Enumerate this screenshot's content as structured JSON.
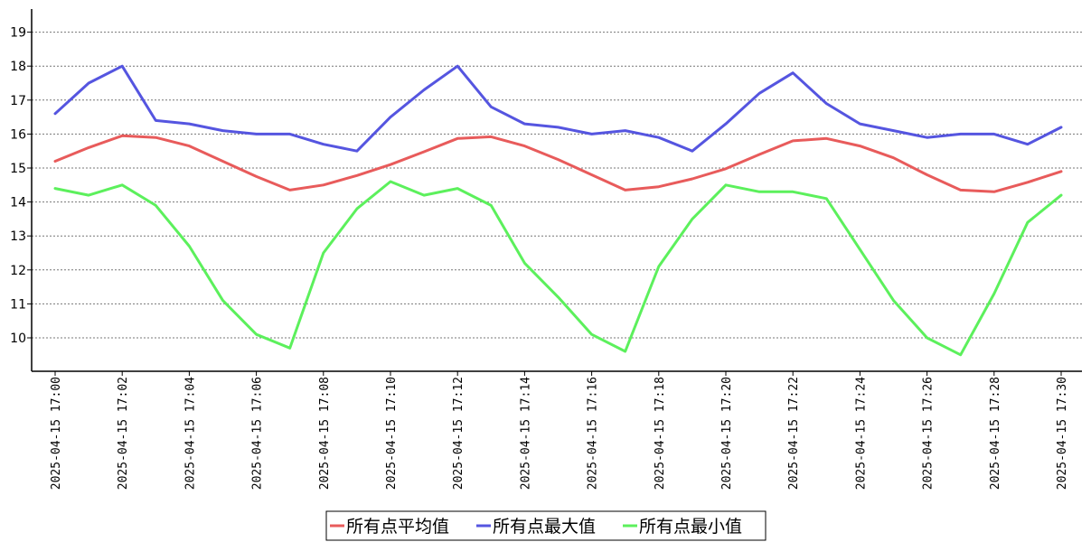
{
  "chart_data": {
    "type": "line",
    "title": "",
    "xlabel": "",
    "ylabel": "",
    "ylim": [
      9,
      20
    ],
    "y_ticks": [
      10,
      11,
      12,
      13,
      14,
      15,
      16,
      17,
      18,
      19
    ],
    "grid": "horizontal dotted",
    "legend_position": "bottom-center",
    "x": [
      "2025-04-15 17:00",
      "2025-04-15 17:01",
      "2025-04-15 17:02",
      "2025-04-15 17:03",
      "2025-04-15 17:04",
      "2025-04-15 17:05",
      "2025-04-15 17:06",
      "2025-04-15 17:07",
      "2025-04-15 17:08",
      "2025-04-15 17:09",
      "2025-04-15 17:10",
      "2025-04-15 17:11",
      "2025-04-15 17:12",
      "2025-04-15 17:13",
      "2025-04-15 17:14",
      "2025-04-15 17:15",
      "2025-04-15 17:16",
      "2025-04-15 17:17",
      "2025-04-15 17:18",
      "2025-04-15 17:19",
      "2025-04-15 17:20",
      "2025-04-15 17:21",
      "2025-04-15 17:22",
      "2025-04-15 17:23",
      "2025-04-15 17:24",
      "2025-04-15 17:25",
      "2025-04-15 17:26",
      "2025-04-15 17:27",
      "2025-04-15 17:28",
      "2025-04-15 17:29",
      "2025-04-15 17:30"
    ],
    "x_tick_labels": [
      "2025-04-15 17:00",
      "2025-04-15 17:02",
      "2025-04-15 17:04",
      "2025-04-15 17:06",
      "2025-04-15 17:08",
      "2025-04-15 17:10",
      "2025-04-15 17:12",
      "2025-04-15 17:14",
      "2025-04-15 17:16",
      "2025-04-15 17:18",
      "2025-04-15 17:20",
      "2025-04-15 17:22",
      "2025-04-15 17:24",
      "2025-04-15 17:26",
      "2025-04-15 17:28",
      "2025-04-15 17:30"
    ],
    "series": [
      {
        "name": "所有点平均值",
        "color": "#e85b5b",
        "values": [
          15.2,
          15.6,
          15.95,
          15.9,
          15.65,
          15.2,
          14.75,
          14.35,
          14.5,
          14.78,
          15.1,
          15.48,
          15.87,
          15.92,
          15.65,
          15.25,
          14.8,
          14.35,
          14.45,
          14.68,
          14.98,
          15.4,
          15.8,
          15.87,
          15.65,
          15.3,
          14.8,
          14.35,
          14.3,
          14.58,
          14.9
        ]
      },
      {
        "name": "所有点最大值",
        "color": "#5555e0",
        "values": [
          16.6,
          17.5,
          18.0,
          16.4,
          16.3,
          16.1,
          16.0,
          16.0,
          15.7,
          15.5,
          16.5,
          17.3,
          18.0,
          16.8,
          16.3,
          16.2,
          16.0,
          16.1,
          15.9,
          15.5,
          16.3,
          17.2,
          17.8,
          16.9,
          16.3,
          16.1,
          15.9,
          16.0,
          16.0,
          15.7,
          16.2
        ]
      },
      {
        "name": "所有点最小值",
        "color": "#5cf05c",
        "values": [
          14.4,
          14.2,
          14.5,
          13.9,
          12.7,
          11.1,
          10.1,
          9.7,
          12.5,
          13.8,
          14.6,
          14.2,
          14.4,
          13.9,
          12.2,
          11.2,
          10.1,
          9.6,
          12.1,
          13.5,
          14.5,
          14.3,
          14.3,
          14.1,
          12.6,
          11.1,
          10.0,
          9.5,
          11.3,
          13.4,
          14.2
        ]
      }
    ]
  }
}
